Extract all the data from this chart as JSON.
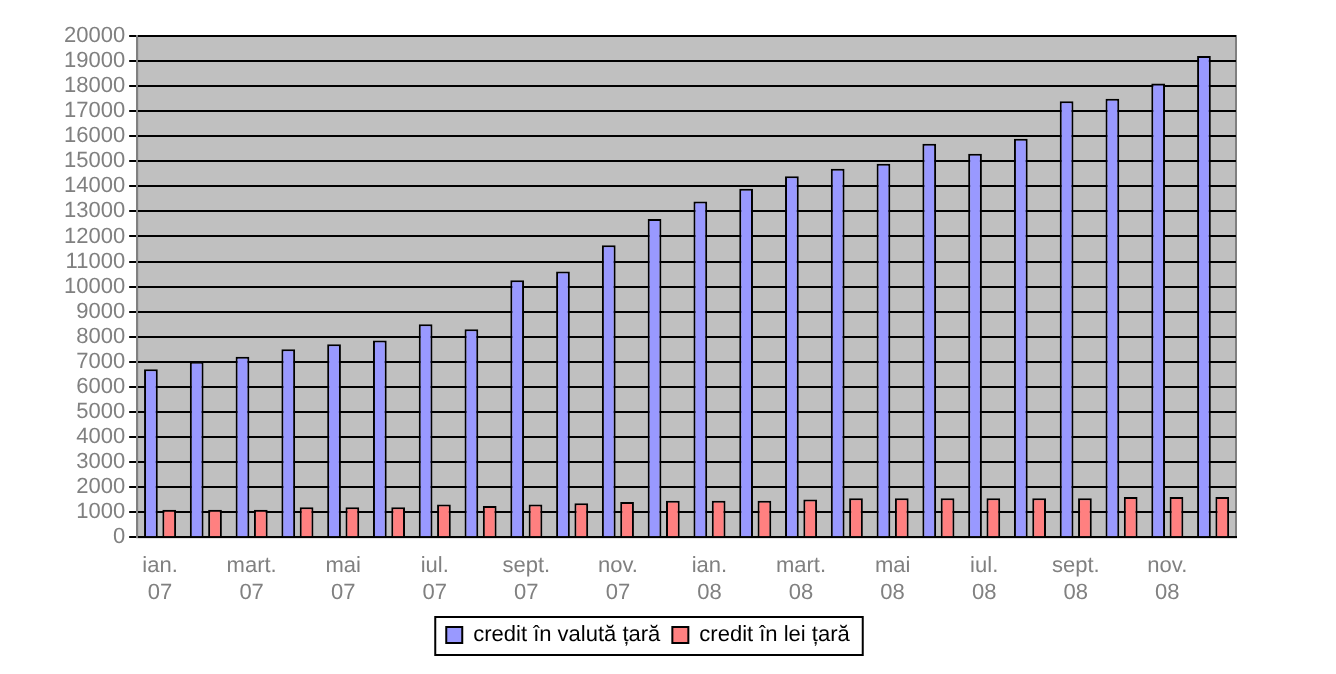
{
  "chart_data": {
    "type": "bar",
    "categories": [
      "ian. 07",
      null,
      "mart. 07",
      null,
      "mai 07",
      null,
      "iul. 07",
      null,
      "sept. 07",
      null,
      "nov. 07",
      null,
      "ian. 08",
      null,
      "mart. 08",
      null,
      "mai 08",
      null,
      "iul. 08",
      null,
      "sept. 08",
      null,
      "nov. 08",
      null
    ],
    "series": [
      {
        "name": "credit în valută țară",
        "color": "#9999ff",
        "values": [
          6700,
          7000,
          7200,
          7500,
          7700,
          7850,
          8500,
          8300,
          10250,
          10600,
          11650,
          12700,
          13400,
          13900,
          14400,
          14700,
          14900,
          15700,
          15300,
          15900,
          17400,
          17500,
          18100,
          19200
        ]
      },
      {
        "name": "credit în lei țară",
        "color": "#ff8080",
        "values": [
          1100,
          1100,
          1100,
          1200,
          1200,
          1200,
          1300,
          1250,
          1300,
          1350,
          1400,
          1450,
          1450,
          1450,
          1500,
          1550,
          1550,
          1550,
          1550,
          1550,
          1550,
          1600,
          1600,
          1600
        ]
      }
    ],
    "ylim": [
      0,
      20000
    ],
    "yticks": [
      0,
      1000,
      2000,
      3000,
      4000,
      5000,
      6000,
      7000,
      8000,
      9000,
      10000,
      11000,
      12000,
      13000,
      14000,
      15000,
      16000,
      17000,
      18000,
      19000,
      20000
    ],
    "grid": "y",
    "legend": "bottom"
  }
}
